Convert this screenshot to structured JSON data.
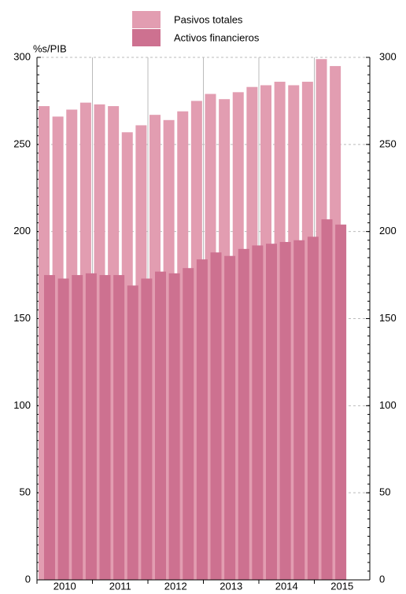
{
  "chart_data": {
    "type": "bar",
    "y_axis_label": "%s/PIB",
    "x_tick_labels": [
      "2010",
      "2011",
      "2012",
      "2013",
      "2014",
      "2015"
    ],
    "series": [
      {
        "name": "Pasivos totales",
        "color": "#e29db1",
        "values": [
          272,
          266,
          270,
          274,
          273,
          272,
          257,
          261,
          267,
          264,
          269,
          275,
          279,
          276,
          280,
          283,
          284,
          286,
          284,
          286,
          299,
          295
        ]
      },
      {
        "name": "Activos financieros",
        "color": "#cd7190",
        "values": [
          175,
          173,
          175,
          176,
          175,
          175,
          169,
          173,
          177,
          176,
          179,
          184,
          188,
          186,
          190,
          192,
          193,
          194,
          195,
          197,
          207,
          204
        ]
      }
    ],
    "ylim": [
      0,
      300
    ],
    "yticks": [
      0,
      50,
      100,
      150,
      200,
      250,
      300
    ],
    "grid": true
  }
}
